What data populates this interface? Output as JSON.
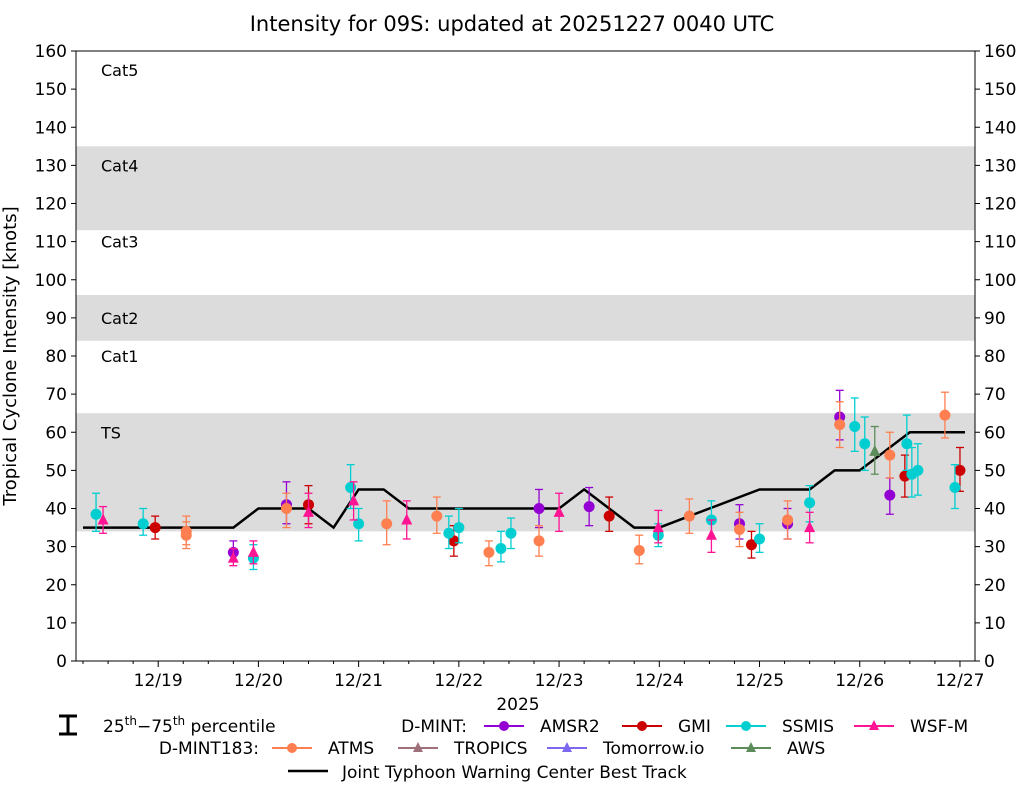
{
  "chart_data": {
    "type": "scatter",
    "title": "Intensity for 09S: updated at 20251227 0040 UTC",
    "ylabel": "Tropical Cyclone Intensity [knots]",
    "xlabel": "2025",
    "ylim": [
      0,
      160
    ],
    "yticks": [
      0,
      10,
      20,
      30,
      40,
      50,
      60,
      70,
      80,
      90,
      100,
      110,
      120,
      130,
      140,
      150,
      160
    ],
    "xlim": [
      -0.82,
      8.15
    ],
    "xticks": [
      {
        "x": 0,
        "label": "12/19"
      },
      {
        "x": 1,
        "label": "12/20"
      },
      {
        "x": 2,
        "label": "12/21"
      },
      {
        "x": 3,
        "label": "12/22"
      },
      {
        "x": 4,
        "label": "12/23"
      },
      {
        "x": 5,
        "label": "12/24"
      },
      {
        "x": 6,
        "label": "12/25"
      },
      {
        "x": 7,
        "label": "12/26"
      },
      {
        "x": 8,
        "label": "12/27"
      }
    ],
    "category_bands": [
      {
        "label": "TS",
        "y0": 34,
        "y1": 65,
        "shaded": true,
        "label_y": 60
      },
      {
        "label": "Cat1",
        "y0": 65,
        "y1": 84,
        "shaded": false,
        "label_y": 80
      },
      {
        "label": "Cat2",
        "y0": 84,
        "y1": 96,
        "shaded": true,
        "label_y": 90
      },
      {
        "label": "Cat3",
        "y0": 96,
        "y1": 113,
        "shaded": false,
        "label_y": 110
      },
      {
        "label": "Cat4",
        "y0": 113,
        "y1": 135,
        "shaded": true,
        "label_y": 130
      },
      {
        "label": "Cat5",
        "y0": 135,
        "y1": 160,
        "shaded": false,
        "label_y": 155
      }
    ],
    "best_track": {
      "name": "Joint Typhoon Warning Center Best Track",
      "color": "#000000",
      "x": [
        -0.75,
        0.75,
        1.0,
        1.5,
        1.75,
        2.0,
        2.25,
        2.5,
        3.0,
        3.5,
        4.0,
        4.25,
        4.5,
        4.75,
        5.0,
        5.5,
        6.0,
        6.5,
        6.75,
        7.0,
        7.25,
        7.5,
        8.05
      ],
      "y": [
        35,
        35,
        40,
        40,
        35,
        45,
        45,
        40,
        40,
        40,
        40,
        45,
        40,
        35,
        35,
        40,
        45,
        45,
        50,
        50,
        55,
        60,
        60
      ]
    },
    "series": [
      {
        "name": "AMSR2",
        "group": "D-MINT",
        "color": "#9400D3",
        "marker": "circle",
        "points": [
          [
            0.75,
            28.5,
            26,
            31.5
          ],
          [
            1.28,
            41,
            36,
            47
          ],
          [
            3.8,
            40,
            35,
            45
          ],
          [
            4.3,
            40.5,
            35.5,
            45.5
          ],
          [
            5.8,
            36,
            32,
            41
          ],
          [
            6.28,
            36,
            32,
            40
          ],
          [
            6.8,
            64,
            58,
            71
          ],
          [
            7.3,
            43.5,
            38.5,
            48
          ]
        ]
      },
      {
        "name": "GMI",
        "group": "D-MINT",
        "color": "#CC0000",
        "marker": "circle",
        "points": [
          [
            -0.03,
            35,
            32,
            38
          ],
          [
            1.5,
            41,
            36,
            46
          ],
          [
            2.95,
            31.5,
            27.5,
            35.5
          ],
          [
            4.5,
            38,
            34,
            43
          ],
          [
            5.92,
            30.5,
            27,
            34
          ],
          [
            7.45,
            48.5,
            43,
            54
          ],
          [
            8.0,
            50,
            44.5,
            56
          ]
        ]
      },
      {
        "name": "SSMIS",
        "group": "D-MINT",
        "color": "#00CED1",
        "marker": "circle",
        "points": [
          [
            -0.62,
            38.5,
            34,
            44
          ],
          [
            -0.15,
            36,
            33,
            40
          ],
          [
            0.95,
            27,
            24,
            30.5
          ],
          [
            1.92,
            45.5,
            40,
            51.5
          ],
          [
            2.0,
            36,
            31.5,
            40
          ],
          [
            2.9,
            33.5,
            29.5,
            38
          ],
          [
            3.0,
            35,
            31,
            40
          ],
          [
            3.42,
            29.5,
            26,
            34
          ],
          [
            3.52,
            33.5,
            29.5,
            37.5
          ],
          [
            4.99,
            33,
            30,
            36
          ],
          [
            5.52,
            37,
            32,
            42
          ],
          [
            6.0,
            32,
            28.5,
            36
          ],
          [
            6.5,
            41.5,
            36.5,
            46
          ],
          [
            6.95,
            61.5,
            55,
            69
          ],
          [
            7.05,
            57,
            50,
            64
          ],
          [
            7.47,
            57,
            50,
            64.5
          ],
          [
            7.52,
            49,
            43,
            56
          ],
          [
            7.58,
            50,
            43.5,
            57
          ],
          [
            7.95,
            45.5,
            40,
            51.5
          ]
        ]
      },
      {
        "name": "WSF-M",
        "group": "D-MINT",
        "color": "#FF1493",
        "marker": "triangle",
        "points": [
          [
            -0.55,
            37,
            33.5,
            40.5
          ],
          [
            0.75,
            27,
            25,
            29.5
          ],
          [
            0.95,
            28.5,
            25.5,
            31.5
          ],
          [
            1.5,
            39,
            35,
            44
          ],
          [
            1.95,
            42,
            37,
            47
          ],
          [
            2.48,
            37,
            32,
            42
          ],
          [
            4.0,
            39,
            34,
            44
          ],
          [
            4.99,
            35,
            31,
            39.5
          ],
          [
            5.52,
            33,
            28.5,
            37
          ],
          [
            6.5,
            35,
            31,
            39
          ]
        ]
      },
      {
        "name": "ATMS",
        "group": "D-MINT183",
        "color": "#FF7F50",
        "marker": "circle",
        "points": [
          [
            0.28,
            34,
            30.5,
            38
          ],
          [
            0.28,
            33,
            29.5,
            36.5
          ],
          [
            1.28,
            40,
            35,
            44
          ],
          [
            2.28,
            36,
            30.5,
            42
          ],
          [
            2.78,
            38,
            33.5,
            43
          ],
          [
            3.3,
            28.5,
            25,
            31.5
          ],
          [
            3.8,
            31.5,
            27.5,
            35.5
          ],
          [
            4.8,
            29,
            25.5,
            33
          ],
          [
            5.3,
            38,
            33.5,
            42.5
          ],
          [
            5.8,
            34.5,
            30,
            39
          ],
          [
            6.28,
            37,
            32,
            42
          ],
          [
            6.8,
            62,
            56,
            68
          ],
          [
            7.3,
            54,
            48,
            60
          ],
          [
            7.85,
            64.5,
            58.5,
            70.5
          ]
        ]
      },
      {
        "name": "TROPICS",
        "group": "D-MINT183",
        "color": "#A0707A",
        "marker": "triangle",
        "points": []
      },
      {
        "name": "Tomorrow.io",
        "group": "D-MINT183",
        "color": "#7B68EE",
        "marker": "triangle",
        "points": []
      },
      {
        "name": "AWS",
        "group": "D-MINT183",
        "color": "#5B8C5A",
        "marker": "triangle",
        "points": [
          [
            7.15,
            55,
            49,
            61.5
          ]
        ]
      }
    ],
    "legend": {
      "errorbar_label_prefix": "25",
      "errorbar_label_mid": "−75",
      "errorbar_label_suffix": "percentile",
      "errorbar_sup": "th",
      "group1": "D-MINT:",
      "group2": "D-MINT183:",
      "placement": "bottom"
    }
  }
}
